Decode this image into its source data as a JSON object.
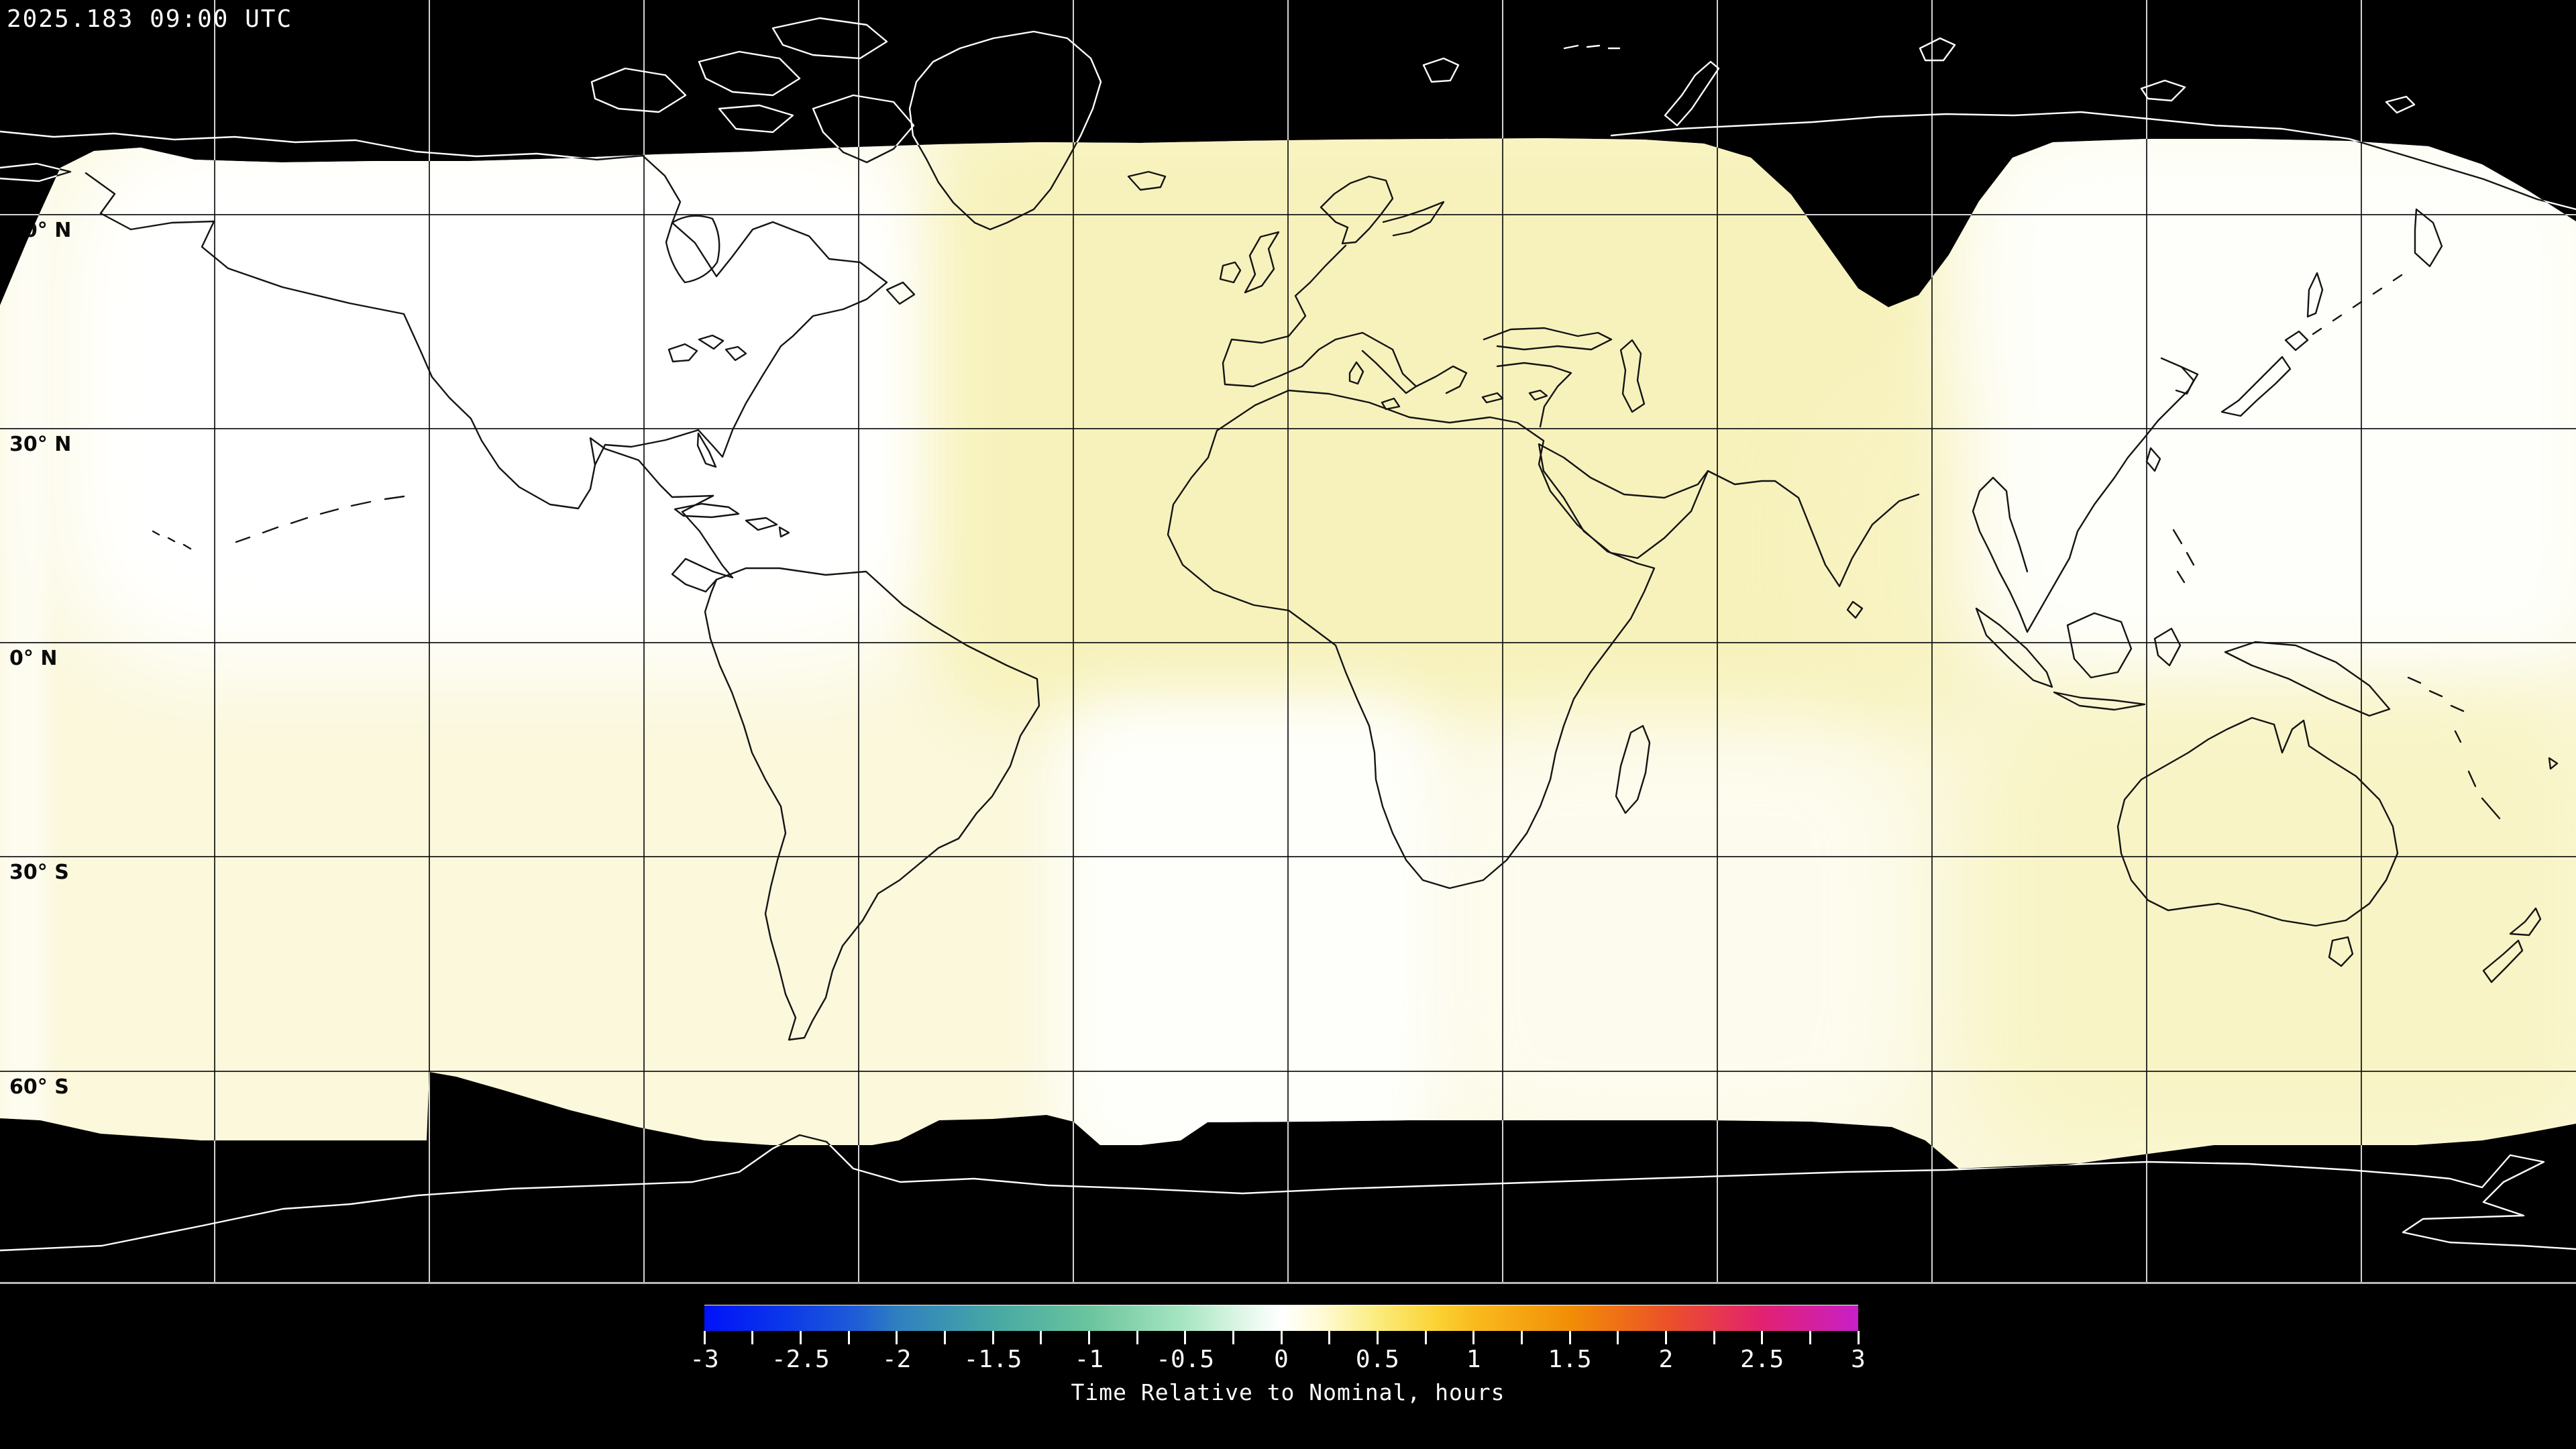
{
  "header": {
    "timestamp": "2025.183 09:00 UTC"
  },
  "map": {
    "latitude_labels": [
      "60° N",
      "30° N",
      "0° N",
      "30° S",
      "60° S"
    ],
    "longitude_grid_spacing_deg": 30,
    "no_data_color": "#000000",
    "colors": {
      "data_base": "#fbf8dc",
      "yellow_tint": "#f7f2bc",
      "white_tint": "#ffffff",
      "coast_in_data": "#141414",
      "coast_in_no_data": "#ffffff",
      "grid_in_data": "#0f0f0f",
      "grid_in_no_data": "#ebebeb"
    }
  },
  "colorbar": {
    "caption": "Time Relative to Nominal, hours",
    "tick_labels": [
      "-3",
      "-2.5",
      "-2",
      "-1.5",
      "-1",
      "-0.5",
      "0",
      "0.5",
      "1",
      "1.5",
      "2",
      "2.5",
      "3"
    ],
    "minor_tick_step": 0.25,
    "min": -3,
    "max": 3,
    "gradient_stops": [
      {
        "v": -3.0,
        "c": "#0012f8"
      },
      {
        "v": -2.6,
        "c": "#0b36ea"
      },
      {
        "v": -2.2,
        "c": "#1f5ed6"
      },
      {
        "v": -2.0,
        "c": "#2f7fc0"
      },
      {
        "v": -1.5,
        "c": "#46a8a4"
      },
      {
        "v": -1.0,
        "c": "#6ac49d"
      },
      {
        "v": -0.5,
        "c": "#a8e6c3"
      },
      {
        "v": -0.15,
        "c": "#e8f9ee"
      },
      {
        "v": 0.0,
        "c": "#ffffff"
      },
      {
        "v": 0.2,
        "c": "#fffbd9"
      },
      {
        "v": 0.5,
        "c": "#fbec7d"
      },
      {
        "v": 0.8,
        "c": "#fbd335"
      },
      {
        "v": 1.0,
        "c": "#f9bb1e"
      },
      {
        "v": 1.5,
        "c": "#f28e06"
      },
      {
        "v": 2.0,
        "c": "#ec5227"
      },
      {
        "v": 2.5,
        "c": "#e22170"
      },
      {
        "v": 3.0,
        "c": "#c81fc8"
      }
    ]
  },
  "chart_data": {
    "type": "heatmap",
    "title": "Time Relative to Nominal, hours",
    "timestamp": "2025.183 09:00 UTC",
    "projection": "equirectangular world map, lon -180..180, lat 90..-90",
    "colorbar": {
      "units": "hours",
      "min": -3,
      "max": 3,
      "labeled_tick_step": 0.5,
      "minor_tick_step": 0.25,
      "legend_position": "bottom center"
    },
    "grid": {
      "lat_labeled_lines_deg": [
        60,
        30,
        0,
        -30,
        -60
      ],
      "lon_spacing_deg": 30,
      "grid_on": true
    },
    "no_data_regions": [
      "poleward of ~75N (black band, white coastlines)",
      "poleward of ~62-66S (black band, white Antarctica coastline)"
    ],
    "regions": [
      {
        "area": "North America / NW Atlantic",
        "value_hours": 0.05
      },
      {
        "area": "Americas equatorial band & SE Pacific",
        "value_hours": 0.2
      },
      {
        "area": "Europe / North Africa / Middle East / India",
        "value_hours": 0.4
      },
      {
        "area": "South-central Atlantic & southern Africa swath",
        "value_hours": 0.0
      },
      {
        "area": "NE Asia / Japan / NW Pacific",
        "value_hours": 0.05
      },
      {
        "area": "Australia / Oceania / SE Indian Ocean",
        "value_hours": 0.35
      },
      {
        "area": "far-left Pacific edge strip",
        "value_hours": 0.1
      }
    ]
  }
}
